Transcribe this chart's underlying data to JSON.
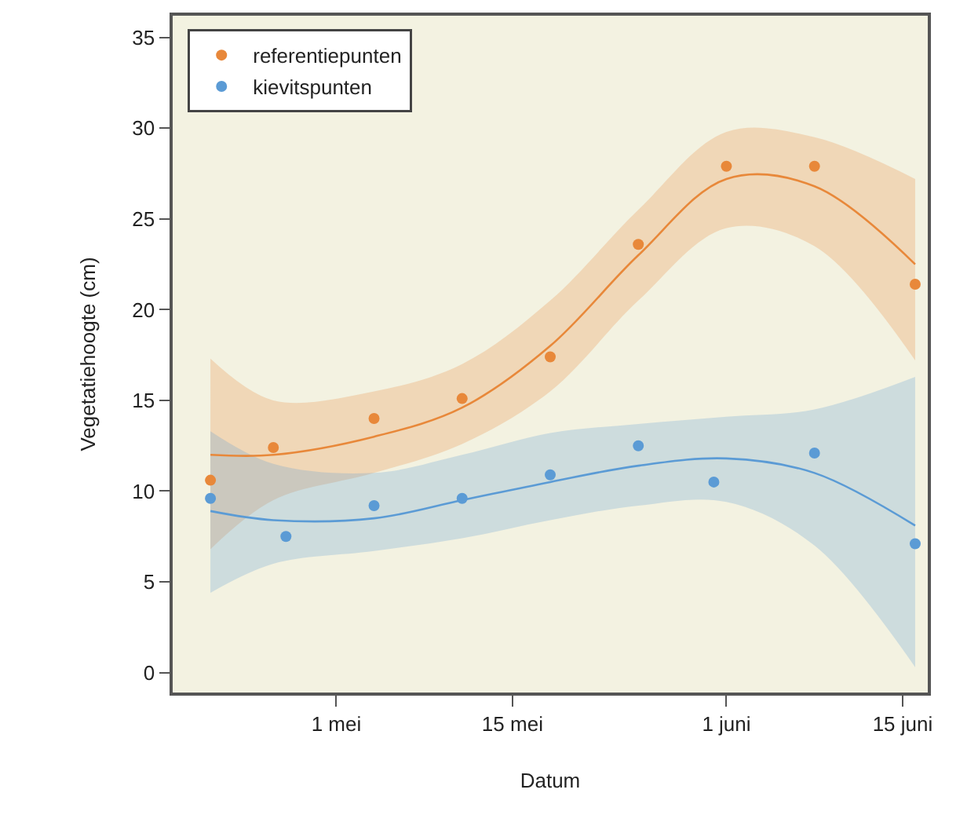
{
  "chart_data": {
    "type": "scatter",
    "xlabel": "Datum",
    "ylabel": "Vegetatiehoogte (cm)",
    "xlim": [
      "--04-18",
      "--06-17"
    ],
    "xticks": [
      {
        "value": "--05-01",
        "label": "1 mei"
      },
      {
        "value": "--05-15",
        "label": "15 mei"
      },
      {
        "value": "--06-01",
        "label": "1 juni"
      },
      {
        "value": "--06-15",
        "label": "15 juni"
      }
    ],
    "ylim": [
      -1.1,
      36.2
    ],
    "yticks": [
      0,
      5,
      10,
      15,
      20,
      25,
      30,
      35
    ],
    "grid": false,
    "legend": "top left",
    "series": [
      {
        "name": "referentiepunten",
        "marker": "circle",
        "color": "#e8883a",
        "x": [
          "--04-21",
          "--04-26",
          "--05-04",
          "--05-11",
          "--05-18",
          "--05-25",
          "--06-01",
          "--06-08",
          "--06-16"
        ],
        "values": [
          10.6,
          12.4,
          14.0,
          15.1,
          17.4,
          23.6,
          27.9,
          27.9,
          21.4
        ]
      },
      {
        "name": "kievitspunten",
        "marker": "circle",
        "color": "#5b9bd5",
        "x": [
          "--04-21",
          "--04-27",
          "--05-04",
          "--05-11",
          "--05-18",
          "--05-25",
          "--05-31",
          "--06-08",
          "--06-16"
        ],
        "values": [
          9.6,
          7.5,
          9.2,
          9.6,
          10.9,
          12.5,
          10.5,
          12.1,
          7.1
        ]
      },
      {
        "type": "line",
        "marker": "none",
        "color": "#e8883a",
        "x": [
          "--04-21",
          "--04-26",
          "--05-04",
          "--05-11",
          "--05-18",
          "--05-25",
          "--06-01",
          "--06-08",
          "--06-16"
        ],
        "values": [
          12.0,
          12.0,
          13.0,
          14.6,
          18.0,
          23.0,
          27.2,
          26.8,
          22.5
        ],
        "lower": [
          6.8,
          9.5,
          11.0,
          12.6,
          15.5,
          20.5,
          24.5,
          23.5,
          17.2
        ],
        "upper": [
          17.3,
          15.0,
          15.5,
          17.0,
          20.5,
          25.5,
          29.8,
          29.5,
          27.2
        ]
      },
      {
        "type": "line",
        "marker": "none",
        "color": "#5b9bd5",
        "x": [
          "--04-21",
          "--04-26",
          "--05-04",
          "--05-11",
          "--05-18",
          "--05-25",
          "--06-01",
          "--06-08",
          "--06-16"
        ],
        "values": [
          8.9,
          8.4,
          8.5,
          9.5,
          10.5,
          11.4,
          11.8,
          11.0,
          8.1
        ],
        "lower": [
          4.4,
          6.0,
          6.7,
          7.4,
          8.4,
          9.2,
          9.4,
          7.0,
          0.3
        ],
        "upper": [
          13.3,
          11.5,
          11.0,
          12.0,
          13.2,
          13.7,
          14.1,
          14.5,
          16.3
        ]
      }
    ]
  }
}
